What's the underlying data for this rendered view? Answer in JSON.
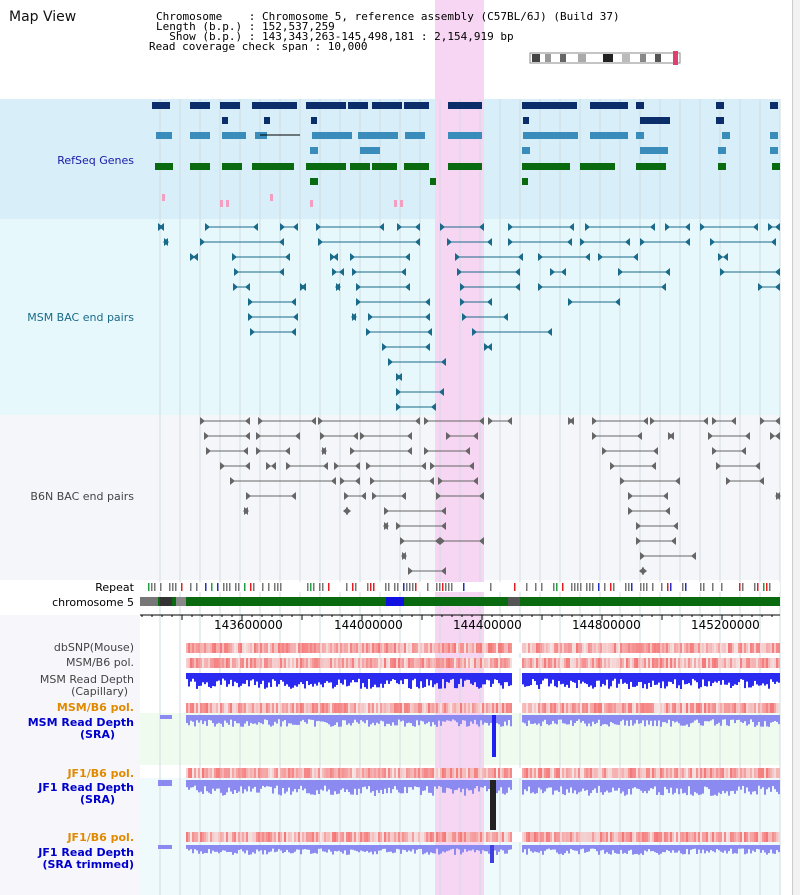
{
  "header": {
    "view_title": "Map View",
    "chromosome_line": "Chromosome    : Chromosome 5, reference assembly (C57BL/6J) (Build 37)",
    "length_line": "Length (b.p.) : 152,537,259",
    "show_line": "  Show (b.p.) : 143,343,263-145,498,181 : 2,154,919 bp",
    "coverage_line": "Read coverage check span : 10,000"
  },
  "tracks": {
    "refseq": "RefSeq Genes",
    "msm_bac": "MSM BAC end pairs",
    "b6n_bac": "B6N BAC end pairs",
    "repeat": "Repeat",
    "chromosome": "chromosome 5",
    "dbsnp": "dbSNP(Mouse)",
    "msm_b6_pol_1": "MSM/B6 pol.",
    "msm_depth_cap_1": "MSM Read Depth",
    "msm_depth_cap_2": "(Capillary)",
    "msm_b6_pol_2": "MSM/B6 pol.",
    "msm_depth_sra_1": "MSM Read Depth",
    "msm_depth_sra_2": "(SRA)",
    "jf1_b6_pol_1": "JF1/B6 pol.",
    "jf1_depth_sra_1": "JF1 Read Depth",
    "jf1_depth_sra_2": "(SRA)",
    "jf1_b6_pol_2": "JF1/B6 pol.",
    "jf1_depth_trim_1": "JF1 Read Depth",
    "jf1_depth_trim_2": "(SRA trimmed)"
  },
  "axis": {
    "ticks": [
      "143600000",
      "144000000",
      "144400000",
      "144800000",
      "145200000"
    ]
  },
  "colors": {
    "refseq_bg": "#d8eef8",
    "msm_bg": "#e6f8fb",
    "b6n_bg": "#f4f6fa",
    "highlight": "#f7d6f3",
    "refseq_label": "#1a1aa8",
    "msm_label": "#1a6a8a",
    "b6n_label": "#444444",
    "orange_label": "#e08a00",
    "blue_label": "#0000cc",
    "depth_blue": "#2a2af0",
    "depth_light": "#8a8af0",
    "pol_red": "#f05050"
  }
}
